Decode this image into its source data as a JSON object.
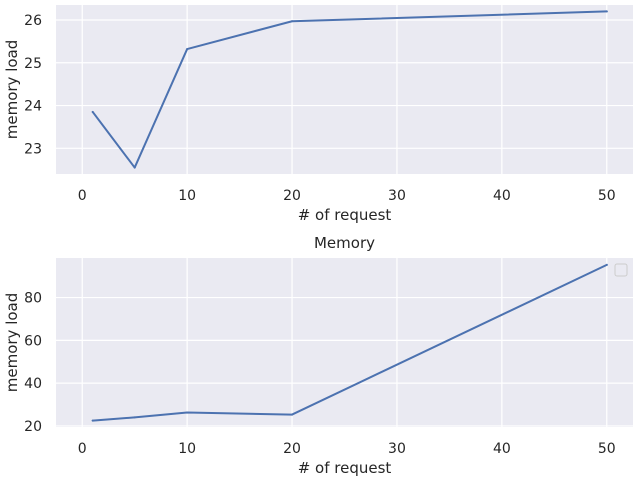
{
  "chart_data": [
    {
      "type": "line",
      "title": "",
      "xlabel": "# of request",
      "ylabel": "memory load",
      "x": [
        1,
        5,
        10,
        20,
        50
      ],
      "series": [
        {
          "values": [
            23.85,
            22.55,
            25.32,
            25.97,
            26.2
          ]
        }
      ],
      "xlim": [
        -2.5,
        52.5
      ],
      "ylim": [
        22.4,
        26.35
      ],
      "xticks": [
        0,
        10,
        20,
        30,
        40,
        50
      ],
      "yticks": [
        23,
        24,
        25,
        26
      ],
      "grid": true,
      "line_color": "#4C72B0",
      "background": "#EAEAF2"
    },
    {
      "type": "line",
      "title": "Memory",
      "xlabel": "# of request",
      "ylabel": "memory load",
      "x": [
        1,
        5,
        10,
        20,
        50
      ],
      "series": [
        {
          "values": [
            22.5,
            24.0,
            26.3,
            25.3,
            95.3
          ]
        }
      ],
      "xlim": [
        -2.5,
        52.5
      ],
      "ylim": [
        19.5,
        98.5
      ],
      "xticks": [
        0,
        10,
        20,
        30,
        40,
        50
      ],
      "yticks": [
        20,
        40,
        60,
        80
      ],
      "grid": true,
      "legend": "top-right",
      "line_color": "#4C72B0",
      "background": "#EAEAF2"
    }
  ]
}
